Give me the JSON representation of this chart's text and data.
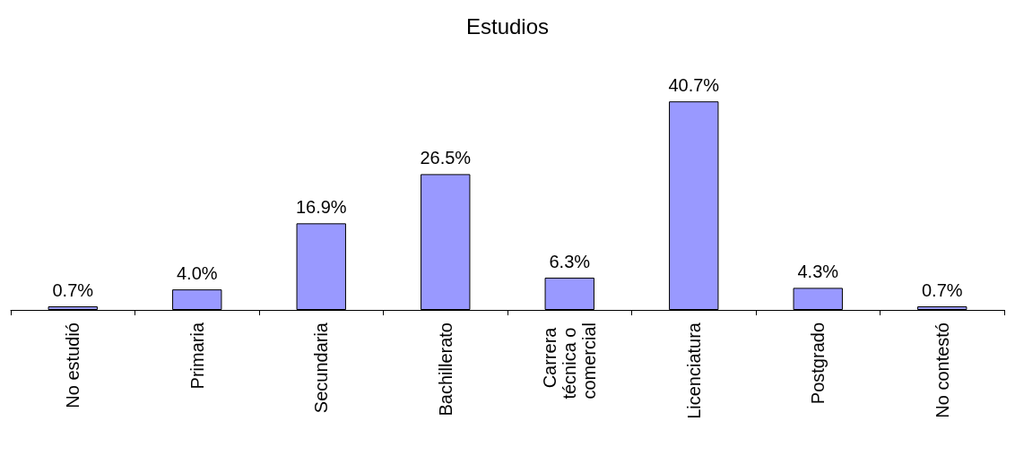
{
  "chart_data": {
    "type": "bar",
    "title": "Estudios",
    "categories": [
      "No estudió",
      "Primaria",
      "Secundaria",
      "Bachillerato",
      "Carrera técnica o comercial",
      "Licenciatura",
      "Postgrado",
      "No contestó"
    ],
    "values": [
      0.7,
      4.0,
      16.9,
      26.5,
      6.3,
      40.7,
      4.3,
      0.7
    ],
    "value_labels": [
      "0.7%",
      "4.0%",
      "16.9%",
      "26.5%",
      "6.3%",
      "40.7%",
      "4.3%",
      "0.7%"
    ],
    "color": "#9999ff"
  }
}
